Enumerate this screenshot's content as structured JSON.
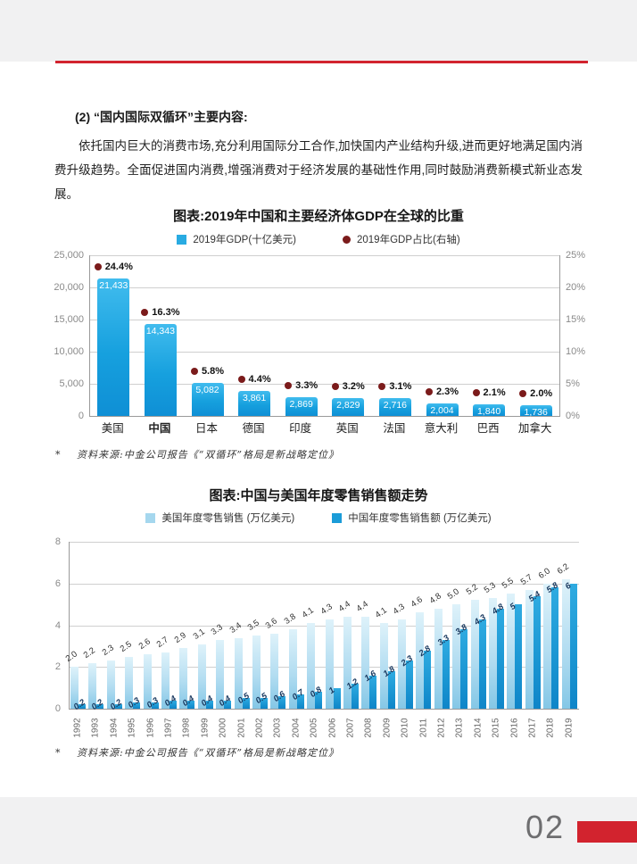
{
  "content": {
    "heading": "(2) “国内国际双循环”主要内容:",
    "paragraph": "依托国内巨大的消费市场,充分利用国际分工合作,加快国内产业结构升级,进而更好地满足国内消费升级趋势。全面促进国内消费,增强消费对于经济发展的基础性作用,同时鼓励消费新模式新业态发展。",
    "note_mark": "*",
    "source_note": "资料来源:中金公司报告《“双循环”格局是新战略定位》"
  },
  "footer": {
    "page_number": "02"
  },
  "colors": {
    "accent_red": "#d2232e",
    "gdp_bar_blue": "#1b9cd8",
    "us_bar_light_blue": "#a5d7ee",
    "cn_bar_blue": "#1b9cd8",
    "pct_dot_maroon": "#7b1b1b"
  },
  "chart_data": [
    {
      "type": "bar",
      "title": "图表:2019年中国和主要经济体GDP在全球的比重",
      "legend": [
        {
          "marker": "square",
          "color": "#29abe2",
          "label": "2019年GDP(十亿美元)"
        },
        {
          "marker": "circle",
          "color": "#7b1b1b",
          "label": "2019年GDP占比(右轴)"
        }
      ],
      "categories": [
        "美国",
        "中国",
        "日本",
        "德国",
        "印度",
        "英国",
        "法国",
        "意大利",
        "巴西",
        "加拿大"
      ],
      "emphasis_category": "中国",
      "series": [
        {
          "name": "2019年GDP(十亿美元)",
          "values": [
            21433,
            14343,
            5082,
            3861,
            2869,
            2829,
            2716,
            2004,
            1840,
            1736
          ],
          "labels": [
            "21,433",
            "14,343",
            "5,082",
            "3,861",
            "2,869",
            "2,829",
            "2,716",
            "2,004",
            "1,840",
            "1,736"
          ]
        },
        {
          "name": "2019年GDP占比(右轴)",
          "values": [
            24.4,
            16.3,
            5.8,
            4.4,
            3.3,
            3.2,
            3.1,
            2.3,
            2.1,
            2.0
          ],
          "labels": [
            "24.4%",
            "16.3%",
            "5.8%",
            "4.4%",
            "3.3%",
            "3.2%",
            "3.1%",
            "2.3%",
            "2.1%",
            "2.0%"
          ]
        }
      ],
      "left_axis": {
        "ticks": [
          "25,000",
          "20,000",
          "15,000",
          "10,000",
          "5,000",
          "0"
        ],
        "max": 25000,
        "min": 0
      },
      "right_axis": {
        "ticks": [
          "25%",
          "20%",
          "15%",
          "10%",
          "5%",
          "0%"
        ],
        "max": 25,
        "min": 0
      },
      "grid": true,
      "legend_position": "top"
    },
    {
      "type": "bar",
      "title": "图表:中国与美国年度零售销售额走势",
      "legend": [
        {
          "marker": "square",
          "color": "#a5d7ee",
          "label": "美国年度零售销售 (万亿美元)"
        },
        {
          "marker": "square",
          "color": "#1b9cd8",
          "label": "中国年度零售销售额 (万亿美元)"
        }
      ],
      "categories": [
        "1992",
        "1993",
        "1994",
        "1995",
        "1996",
        "1997",
        "1998",
        "1999",
        "2000",
        "2001",
        "2002",
        "2003",
        "2004",
        "2005",
        "2006",
        "2007",
        "2008",
        "2009",
        "2010",
        "2011",
        "2012",
        "2013",
        "2014",
        "2015",
        "2016",
        "2017",
        "2018",
        "2019"
      ],
      "series": [
        {
          "name": "美国年度零售销售 (万亿美元)",
          "values": [
            2.0,
            2.2,
            2.3,
            2.5,
            2.6,
            2.7,
            2.9,
            3.1,
            3.3,
            3.4,
            3.5,
            3.6,
            3.8,
            4.1,
            4.3,
            4.4,
            4.4,
            4.1,
            4.3,
            4.6,
            4.8,
            5.0,
            5.2,
            5.3,
            5.5,
            5.7,
            6.0,
            6.2
          ],
          "labels": [
            "2.0",
            "2.2",
            "2.3",
            "2.5",
            "2.6",
            "2.7",
            "2.9",
            "3.1",
            "3.3",
            "3.4",
            "3.5",
            "3.6",
            "3.8",
            "4.1",
            "4.3",
            "4.4",
            "4.4",
            "4.1",
            "4.3",
            "4.6",
            "4.8",
            "5.0",
            "5.2",
            "5.3",
            "5.5",
            "5.7",
            "6.0",
            "6.2"
          ]
        },
        {
          "name": "中国年度零售销售额 (万亿美元)",
          "values": [
            0.2,
            0.2,
            0.2,
            0.3,
            0.3,
            0.4,
            0.4,
            0.4,
            0.4,
            0.5,
            0.5,
            0.6,
            0.7,
            0.8,
            1,
            1.2,
            1.6,
            1.8,
            2.3,
            2.8,
            3.3,
            3.8,
            4.3,
            4.8,
            5,
            5.4,
            5.8,
            6
          ],
          "labels": [
            "0.2",
            "0.2",
            "0.2",
            "0.3",
            "0.3",
            "0.4",
            "0.4",
            "0.4",
            "0.4",
            "0.5",
            "0.5",
            "0.6",
            "0.7",
            "0.8",
            "1",
            "1.2",
            "1.6",
            "1.8",
            "2.3",
            "2.8",
            "3.3",
            "3.8",
            "4.3",
            "4.8",
            "5",
            "5.4",
            "5.8",
            "6"
          ]
        }
      ],
      "y_axis": {
        "ticks": [
          "0",
          "2",
          "4",
          "6",
          "8"
        ],
        "tick_values": [
          0,
          2,
          4,
          6,
          8
        ],
        "max": 8,
        "min": 0
      },
      "grid": true,
      "legend_position": "top"
    }
  ]
}
